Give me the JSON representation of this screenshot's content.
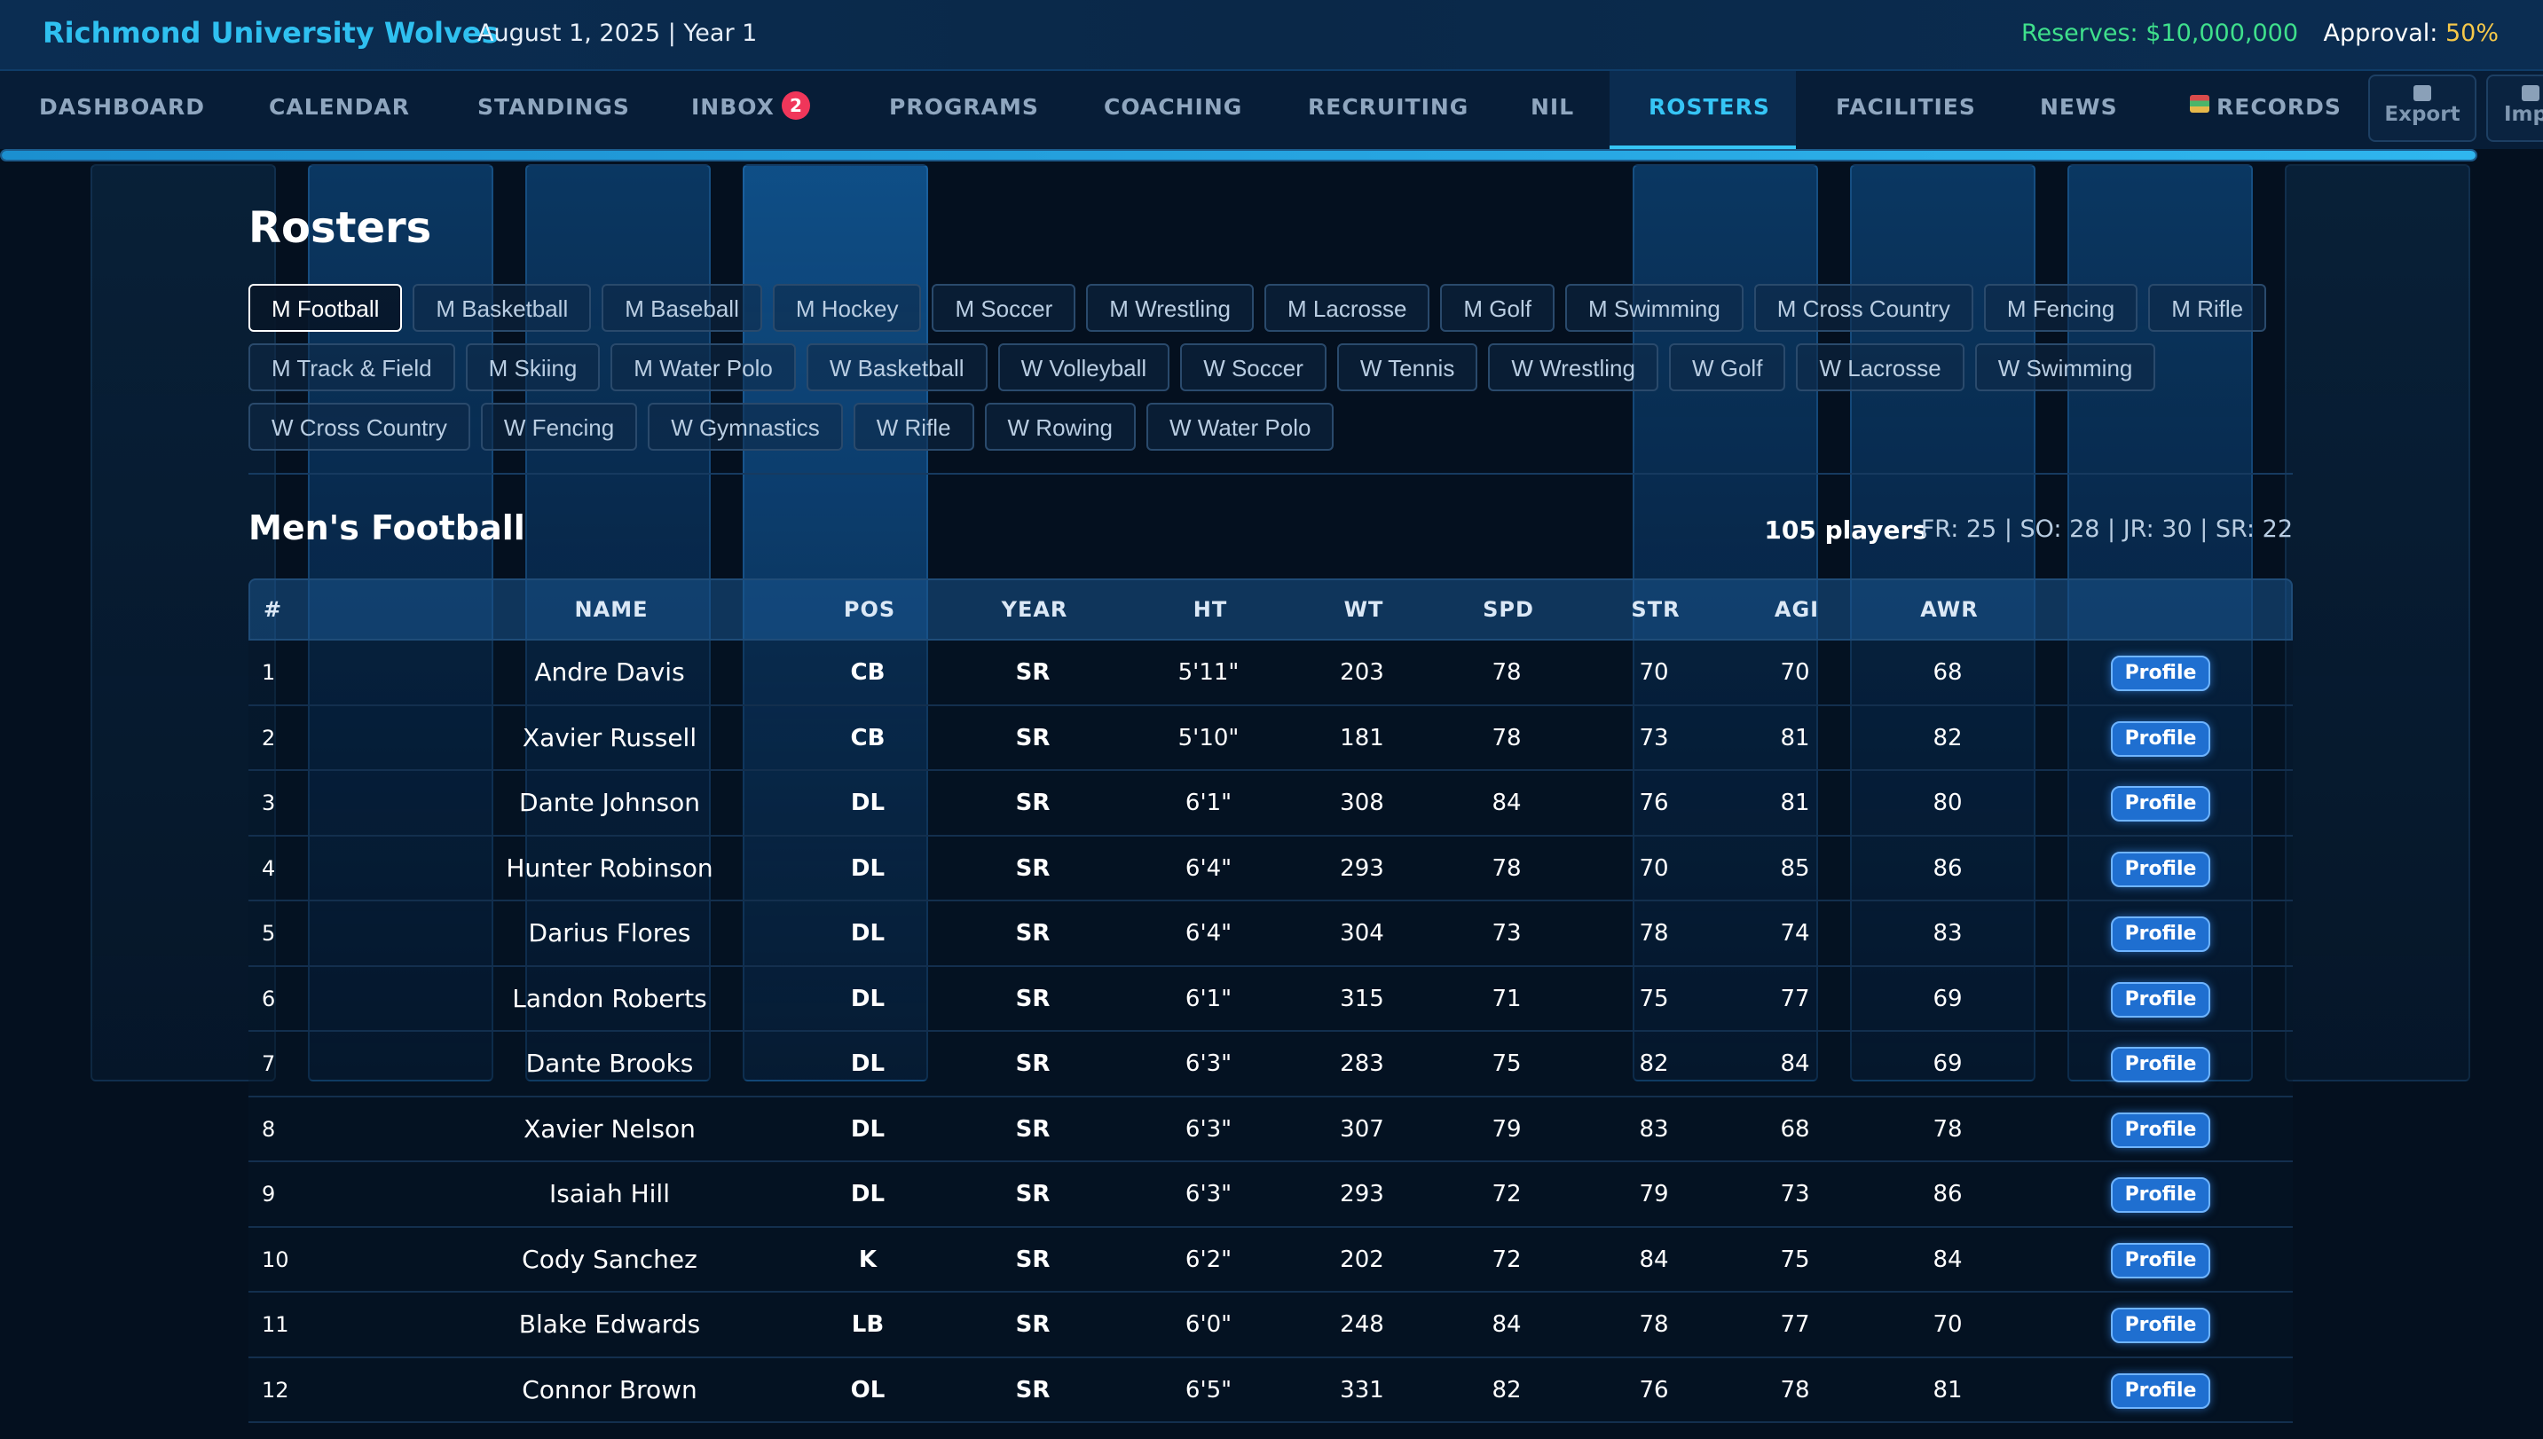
{
  "header": {
    "school": "Richmond University Wolves",
    "date": "August 1, 2025 | Year 1",
    "reserves": "Reserves: $10,000,000",
    "approval_label": "Approval:",
    "approval_value": "50%"
  },
  "nav": {
    "items": [
      "DASHBOARD",
      "CALENDAR",
      "STANDINGS",
      "INBOX",
      "PROGRAMS",
      "COACHING",
      "RECRUITING",
      "NIL",
      "ROSTERS",
      "FACILITIES",
      "NEWS",
      "RECORDS"
    ],
    "inbox_badge": "2",
    "active": "ROSTERS",
    "export_label": "Export",
    "import_label": "Imp",
    "progress": 1.0
  },
  "page": {
    "title": "Rosters"
  },
  "sports": {
    "row1": [
      "M Football",
      "M Basketball",
      "M Baseball",
      "M Hockey",
      "M Soccer",
      "M Wrestling",
      "M Lacrosse",
      "M Golf",
      "M Swimming",
      "M Cross Country",
      "M Fencing",
      "M Rifle"
    ],
    "row2": [
      "M Track & Field",
      "M Skiing",
      "M Water Polo",
      "W Basketball",
      "W Volleyball",
      "W Soccer",
      "W Tennis",
      "W Wrestling",
      "W Golf",
      "W Lacrosse",
      "W Swimming"
    ],
    "row3": [
      "W Cross Country",
      "W Fencing",
      "W Gymnastics",
      "W Rifle",
      "W Rowing",
      "W Water Polo"
    ],
    "selected": "M Football"
  },
  "roster": {
    "title": "Men's Football",
    "players_count": "105 players",
    "class_breakdown": "FR: 25 | SO: 28 | JR: 30 | SR: 22",
    "columns": [
      "#",
      "NAME",
      "POS",
      "YEAR",
      "HT",
      "WT",
      "SPD",
      "STR",
      "AGI",
      "AWR"
    ],
    "profile_label": "Profile",
    "rows": [
      [
        "1",
        "Andre Davis",
        "CB",
        "SR",
        "5'11\"",
        "203",
        "78",
        "70",
        "70",
        "68"
      ],
      [
        "2",
        "Xavier Russell",
        "CB",
        "SR",
        "5'10\"",
        "181",
        "78",
        "73",
        "81",
        "82"
      ],
      [
        "3",
        "Dante Johnson",
        "DL",
        "SR",
        "6'1\"",
        "308",
        "84",
        "76",
        "81",
        "80"
      ],
      [
        "4",
        "Hunter Robinson",
        "DL",
        "SR",
        "6'4\"",
        "293",
        "78",
        "70",
        "85",
        "86"
      ],
      [
        "5",
        "Darius Flores",
        "DL",
        "SR",
        "6'4\"",
        "304",
        "73",
        "78",
        "74",
        "83"
      ],
      [
        "6",
        "Landon Roberts",
        "DL",
        "SR",
        "6'1\"",
        "315",
        "71",
        "75",
        "77",
        "69"
      ],
      [
        "7",
        "Dante Brooks",
        "DL",
        "SR",
        "6'3\"",
        "283",
        "75",
        "82",
        "84",
        "69"
      ],
      [
        "8",
        "Xavier Nelson",
        "DL",
        "SR",
        "6'3\"",
        "307",
        "79",
        "83",
        "68",
        "78"
      ],
      [
        "9",
        "Isaiah Hill",
        "DL",
        "SR",
        "6'3\"",
        "293",
        "72",
        "79",
        "73",
        "86"
      ],
      [
        "10",
        "Cody Sanchez",
        "K",
        "SR",
        "6'2\"",
        "202",
        "72",
        "84",
        "75",
        "84"
      ],
      [
        "11",
        "Blake Edwards",
        "LB",
        "SR",
        "6'0\"",
        "248",
        "84",
        "78",
        "77",
        "70"
      ],
      [
        "12",
        "Connor Brown",
        "OL",
        "SR",
        "6'5\"",
        "331",
        "82",
        "76",
        "78",
        "81"
      ]
    ]
  }
}
